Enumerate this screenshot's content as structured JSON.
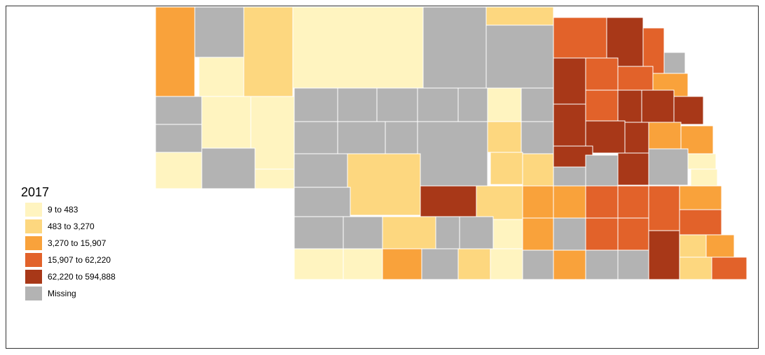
{
  "legend": {
    "title": "2017",
    "items": [
      {
        "label": "9 to 483",
        "color": "#fff4c0"
      },
      {
        "label": "483 to 3,270",
        "color": "#fdd77f"
      },
      {
        "label": "3,270 to 15,907",
        "color": "#f9a23b"
      },
      {
        "label": "15,907 to 62,220",
        "color": "#e2622a"
      },
      {
        "label": "62,220 to 594,888",
        "color": "#a83818"
      },
      {
        "label": "Missing",
        "color": "#b3b3b3"
      }
    ]
  }
}
